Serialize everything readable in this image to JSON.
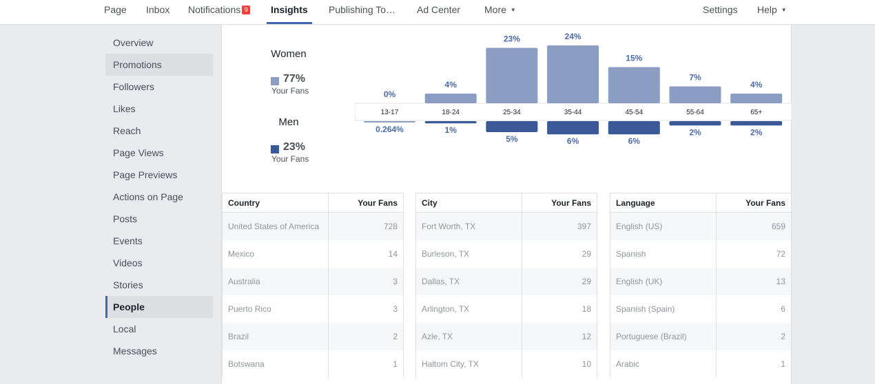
{
  "nav": {
    "items": [
      {
        "label": "Page"
      },
      {
        "label": "Inbox"
      },
      {
        "label": "Notifications",
        "badge": "9"
      },
      {
        "label": "Insights"
      },
      {
        "label": "Publishing To…"
      },
      {
        "label": "Ad Center"
      },
      {
        "label": "More"
      }
    ],
    "settings": "Settings",
    "help": "Help"
  },
  "sidebar": {
    "items": [
      {
        "label": "Overview"
      },
      {
        "label": "Promotions"
      },
      {
        "label": "Followers"
      },
      {
        "label": "Likes"
      },
      {
        "label": "Reach"
      },
      {
        "label": "Page Views"
      },
      {
        "label": "Page Previews"
      },
      {
        "label": "Actions on Page"
      },
      {
        "label": "Posts"
      },
      {
        "label": "Events"
      },
      {
        "label": "Videos"
      },
      {
        "label": "Stories"
      },
      {
        "label": "People"
      },
      {
        "label": "Local"
      },
      {
        "label": "Messages"
      }
    ],
    "active": "People"
  },
  "legend": {
    "women": {
      "title": "Women",
      "pct": "77%",
      "sub": "Your Fans",
      "color": "#8b9dc3"
    },
    "men": {
      "title": "Men",
      "pct": "23%",
      "sub": "Your Fans",
      "color": "#3b5998"
    }
  },
  "chart_data": {
    "type": "bar",
    "categories": [
      "13-17",
      "18-24",
      "25-34",
      "35-44",
      "45-54",
      "55-64",
      "65+"
    ],
    "series": [
      {
        "name": "Women",
        "values": [
          0,
          4,
          23,
          24,
          15,
          7,
          4
        ],
        "labels": [
          "0%",
          "4%",
          "23%",
          "24%",
          "15%",
          "7%",
          "4%"
        ],
        "color": "#8b9dc3"
      },
      {
        "name": "Men",
        "values": [
          0.264,
          1,
          5,
          6,
          6,
          2,
          2
        ],
        "labels": [
          "0.264%",
          "1%",
          "5%",
          "6%",
          "6%",
          "2%",
          "2%"
        ],
        "color": "#3b5998"
      }
    ]
  },
  "tables": [
    {
      "col1": "Country",
      "col2": "Your Fans",
      "rows": [
        {
          "name": "United States of America",
          "value": "728"
        },
        {
          "name": "Mexico",
          "value": "14"
        },
        {
          "name": "Australia",
          "value": "3"
        },
        {
          "name": "Puerto Rico",
          "value": "3"
        },
        {
          "name": "Brazil",
          "value": "2"
        },
        {
          "name": "Botswana",
          "value": "1"
        }
      ]
    },
    {
      "col1": "City",
      "col2": "Your Fans",
      "rows": [
        {
          "name": "Fort Worth, TX",
          "value": "397"
        },
        {
          "name": "Burleson, TX",
          "value": "29"
        },
        {
          "name": "Dallas, TX",
          "value": "29"
        },
        {
          "name": "Arlington, TX",
          "value": "18"
        },
        {
          "name": "Azle, TX",
          "value": "12"
        },
        {
          "name": "Haltom City, TX",
          "value": "10"
        }
      ]
    },
    {
      "col1": "Language",
      "col2": "Your Fans",
      "rows": [
        {
          "name": "English (US)",
          "value": "659"
        },
        {
          "name": "Spanish",
          "value": "72"
        },
        {
          "name": "English (UK)",
          "value": "13"
        },
        {
          "name": "Spanish (Spain)",
          "value": "6"
        },
        {
          "name": "Portuguese (Brazil)",
          "value": "2"
        },
        {
          "name": "Arabic",
          "value": "1"
        }
      ]
    }
  ]
}
